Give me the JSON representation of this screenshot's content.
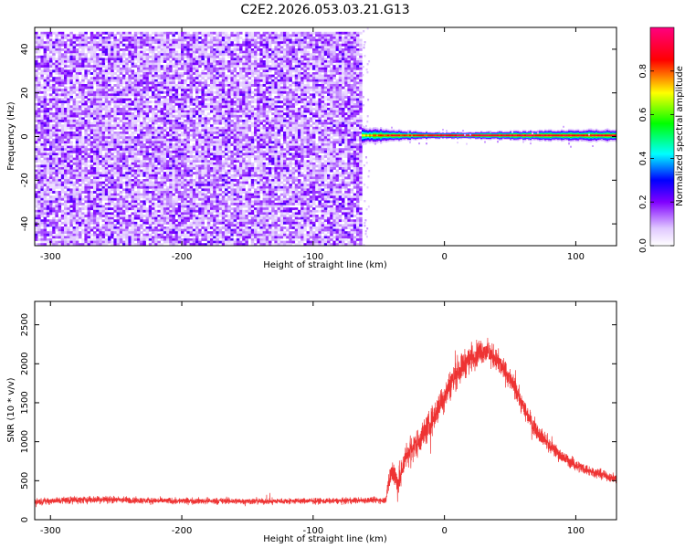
{
  "figure": {
    "title": "C2E2.2026.053.03.21.G13"
  },
  "chart_data": [
    {
      "type": "heatmap",
      "title": "",
      "xlabel": "Height of straight line (km)",
      "ylabel": "Frequency (Hz)",
      "xlim": [
        -312,
        131
      ],
      "ylim": [
        -50,
        50
      ],
      "xticks": [
        -300,
        -200,
        -100,
        0,
        100
      ],
      "yticks": [
        -40,
        -20,
        0,
        20,
        40
      ],
      "xtick_labels": [
        "-300",
        "-200",
        "-100",
        "0",
        "100"
      ],
      "ytick_labels": [
        "-40",
        "-20",
        "0",
        "20",
        "40"
      ],
      "noise_region": {
        "x_range": [
          -312,
          -63
        ],
        "y_range": [
          -50,
          48
        ],
        "amplitude_range": [
          0.0,
          0.3
        ]
      },
      "sparse_scatter": {
        "x_range": [
          -63,
          -58
        ],
        "amplitude_range": [
          0.0,
          0.1
        ]
      },
      "signal_band": {
        "center_freq_hz": 0.5,
        "x_range": [
          -63,
          131
        ],
        "half_width_hz": [
          {
            "x": -63,
            "w": 4
          },
          {
            "x": -40,
            "w": 3
          },
          {
            "x": -20,
            "w": 2
          },
          {
            "x": 0,
            "w": 1.5
          },
          {
            "x": 80,
            "w": 2.5
          },
          {
            "x": 131,
            "w": 3
          }
        ],
        "peak_amplitude": [
          {
            "x": -63,
            "v": 0.75
          },
          {
            "x": -40,
            "v": 0.9
          },
          {
            "x": -20,
            "v": 0.85
          },
          {
            "x": 0,
            "v": 0.95
          },
          {
            "x": 60,
            "v": 0.95
          },
          {
            "x": 131,
            "v": 0.9
          }
        ]
      },
      "colorbar": {
        "label": "Normalized spectral amplitude",
        "range": [
          0.0,
          1.0
        ],
        "ticks": [
          0.0,
          0.2,
          0.4,
          0.6,
          0.8
        ],
        "tick_labels": [
          "0.0",
          "0.2",
          "0.4",
          "0.6",
          "0.8"
        ],
        "colors": [
          "#ffffff",
          "#8000ff",
          "#0000ff",
          "#00ffff",
          "#00ff00",
          "#ffff00",
          "#ff0000",
          "#ff0080"
        ]
      }
    },
    {
      "type": "line",
      "title": "",
      "xlabel": "Height of straight line (km)",
      "ylabel": "SNR (10 * v/v)",
      "xlim": [
        -312,
        131
      ],
      "ylim": [
        0,
        2800
      ],
      "xticks": [
        -300,
        -200,
        -100,
        0,
        100
      ],
      "yticks": [
        0,
        500,
        1000,
        1500,
        2000,
        2500
      ],
      "xtick_labels": [
        "-300",
        "-200",
        "-100",
        "0",
        "100"
      ],
      "ytick_labels": [
        "0",
        "500",
        "1000",
        "1500",
        "2000",
        "2500"
      ],
      "series_color": "#ee3333",
      "series": [
        {
          "name": "",
          "color": "#ee3333",
          "x": [
            -312,
            -290,
            -260,
            -230,
            -200,
            -170,
            -140,
            -110,
            -80,
            -60,
            -45,
            -42,
            -40,
            -35,
            -30,
            -20,
            -10,
            0,
            10,
            20,
            30,
            40,
            50,
            60,
            70,
            80,
            90,
            100,
            110,
            120,
            131
          ],
          "mean": [
            230,
            250,
            260,
            245,
            240,
            240,
            235,
            240,
            240,
            250,
            250,
            500,
            650,
            450,
            800,
            1000,
            1250,
            1600,
            1900,
            2080,
            2180,
            2050,
            1800,
            1450,
            1150,
            950,
            800,
            700,
            630,
            580,
            520
          ],
          "spread": [
            60,
            70,
            70,
            60,
            60,
            60,
            55,
            55,
            55,
            60,
            60,
            200,
            250,
            300,
            250,
            260,
            270,
            280,
            280,
            250,
            230,
            220,
            200,
            180,
            160,
            140,
            120,
            110,
            100,
            90,
            90
          ]
        }
      ]
    }
  ]
}
